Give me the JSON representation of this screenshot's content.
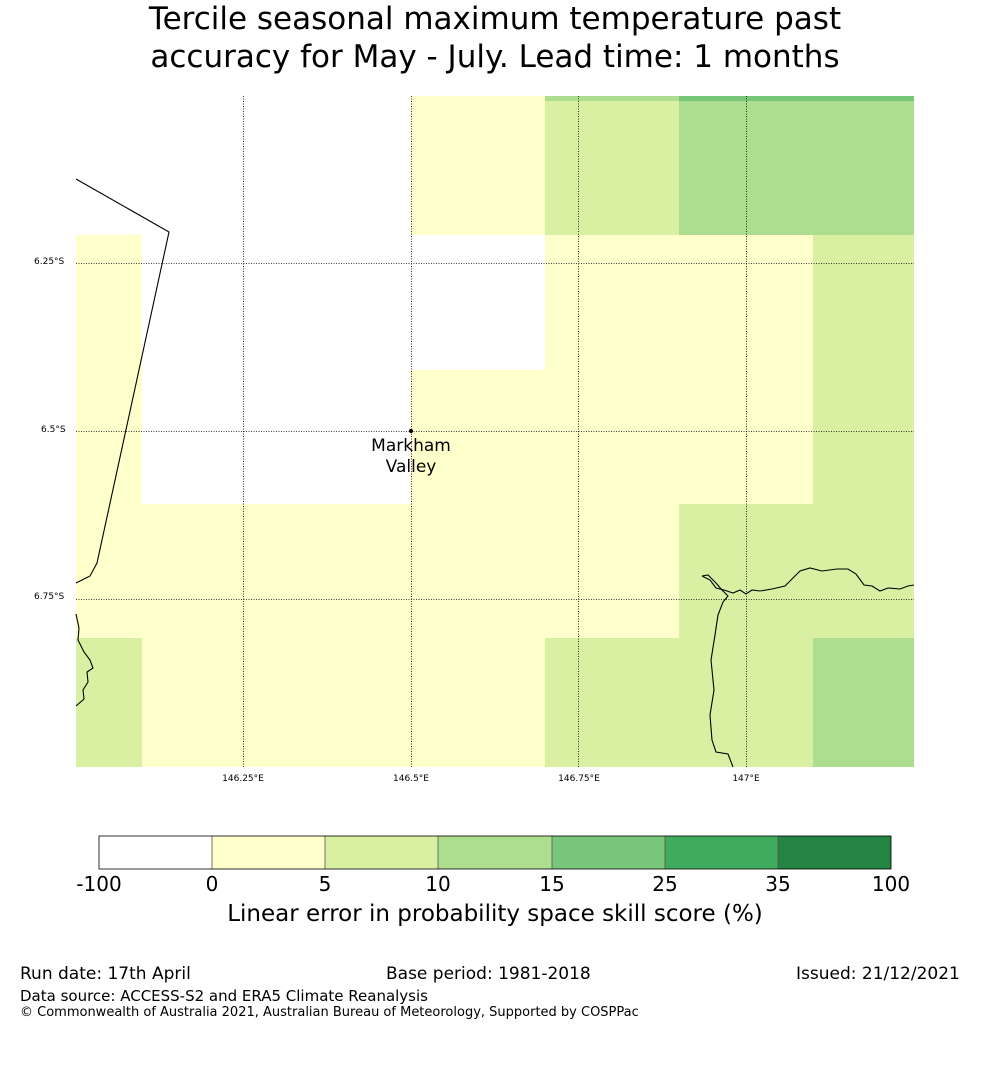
{
  "title": {
    "line1": "Tercile seasonal maximum temperature past",
    "line2": "accuracy for May - July. Lead time: 1 months"
  },
  "map": {
    "lat_labels": [
      "6.25°S",
      "6.5°S",
      "6.75°S"
    ],
    "lon_labels": [
      "146.25°E",
      "146.5°E",
      "146.75°E",
      "147°E"
    ],
    "location": {
      "name_line1": "Markham",
      "name_line2": "Valley"
    }
  },
  "legend": {
    "ticks": [
      "-100",
      "0",
      "5",
      "10",
      "15",
      "25",
      "35",
      "100"
    ],
    "colors": [
      "#ffffff",
      "#ffffcc",
      "#d9f0a3",
      "#addd8e",
      "#78c679",
      "#41ab5d",
      "#238443"
    ],
    "title": "Linear error in probability space skill score (%)"
  },
  "footer": {
    "run_date": "Run date: 17th April",
    "base_period": "Base period: 1981-2018",
    "issued": "Issued: 21/12/2021",
    "data_source": "Data source: ACCESS-S2 and ERA5 Climate Reanalysis",
    "copyright": "© Commonwealth of Australia 2021, Australian Bureau of Meteorology, Supported by COSPPac"
  }
}
